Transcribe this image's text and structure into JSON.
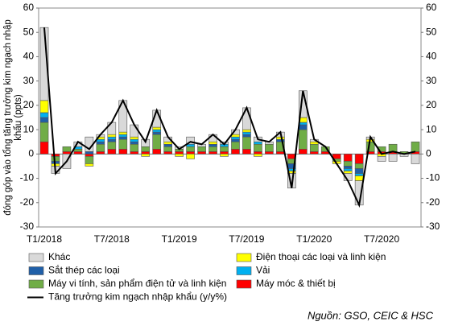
{
  "chart_data": {
    "type": "bar",
    "ylabel": [
      "đóng góp vào tổng tăng trưởng kim ngạch nhập",
      "khẩu (ppts)"
    ],
    "source": "Nguồn: GSO, CEIC & HSC",
    "categories": [
      "T1/2018",
      null,
      null,
      null,
      null,
      null,
      "T7/2018",
      null,
      null,
      null,
      null,
      null,
      "T1/2019",
      null,
      null,
      null,
      null,
      null,
      "T7/2019",
      null,
      null,
      null,
      null,
      null,
      "T1/2020",
      null,
      null,
      null,
      null,
      null,
      "T7/2020",
      null,
      null,
      null
    ],
    "ylim": [
      -30,
      60
    ],
    "yticks": [
      -30,
      -20,
      -10,
      0,
      10,
      20,
      30,
      40,
      50,
      60
    ],
    "y2lim": [
      -30,
      60
    ],
    "y2ticks": [
      -30,
      -20,
      -10,
      0,
      10,
      20,
      30,
      40,
      50,
      60
    ],
    "stacked": true,
    "series": [
      {
        "name": "Máy móc & thiết bị",
        "color": "#ff0000",
        "values": [
          5,
          -1,
          1,
          1,
          -1,
          1,
          2,
          2,
          1,
          1,
          2,
          1,
          1,
          1,
          1,
          1,
          1,
          2,
          2,
          1,
          1,
          1,
          -2,
          2,
          1,
          1,
          -2,
          -3,
          -4,
          1,
          1,
          1,
          0,
          1
        ]
      },
      {
        "name": "Máy vi tính, sản phẩm điện tử và linh kiện",
        "color": "#70ad47",
        "values": [
          8,
          -2,
          2,
          1,
          -3,
          3,
          3,
          4,
          3,
          2,
          6,
          2,
          1,
          2,
          2,
          2,
          2,
          3,
          5,
          3,
          3,
          4,
          -2,
          8,
          3,
          2,
          -1,
          -2,
          -2,
          4,
          2,
          3,
          1,
          4
        ]
      },
      {
        "name": "Sắt thép các loại",
        "color": "#1f5fa8",
        "values": [
          2,
          -1,
          0,
          0,
          1,
          1,
          1,
          1,
          1,
          0,
          1,
          1,
          0,
          0,
          0,
          1,
          0,
          1,
          1,
          0,
          0,
          1,
          -2,
          2,
          0,
          0,
          0,
          -1,
          -2,
          0,
          0,
          0,
          0,
          0
        ]
      },
      {
        "name": "Vải",
        "color": "#00b0f0",
        "values": [
          2,
          0,
          0,
          1,
          0,
          1,
          1,
          1,
          1,
          0,
          1,
          0,
          0,
          1,
          0,
          0,
          1,
          1,
          1,
          1,
          0,
          0,
          -1,
          1,
          0,
          0,
          0,
          -1,
          -1,
          0,
          0,
          0,
          0,
          0
        ]
      },
      {
        "name": "Điện thoại các loại và linh kiện",
        "color": "#ffff00",
        "values": [
          5,
          -1,
          0,
          0,
          -1,
          1,
          1,
          1,
          1,
          -1,
          1,
          1,
          -1,
          -2,
          0,
          1,
          -1,
          1,
          1,
          -1,
          0,
          1,
          -1,
          2,
          1,
          0,
          -1,
          -1,
          -2,
          1,
          -1,
          0,
          0,
          0
        ]
      },
      {
        "name": "Khác",
        "color": "#d9d9d9",
        "values": [
          30,
          -3,
          -6,
          2,
          6,
          1,
          5,
          13,
          5,
          3,
          7,
          2,
          1,
          3,
          1,
          3,
          1,
          2,
          9,
          2,
          1,
          2,
          -6,
          11,
          1,
          0,
          0,
          -3,
          -10,
          1,
          -2,
          -3,
          -1,
          -4
        ]
      },
      {
        "name": "Tăng trưởng kim ngạch nhập khẩu (y/y%)",
        "color": "#000000",
        "type": "line",
        "axis": "y2",
        "values": [
          52,
          -8,
          -3,
          5,
          2,
          8,
          13,
          22,
          12,
          5,
          18,
          7,
          2,
          5,
          4,
          8,
          4,
          10,
          19,
          6,
          5,
          9,
          -14,
          26,
          6,
          3,
          -4,
          -11,
          -21,
          7,
          0,
          1,
          0,
          1
        ]
      }
    ]
  }
}
